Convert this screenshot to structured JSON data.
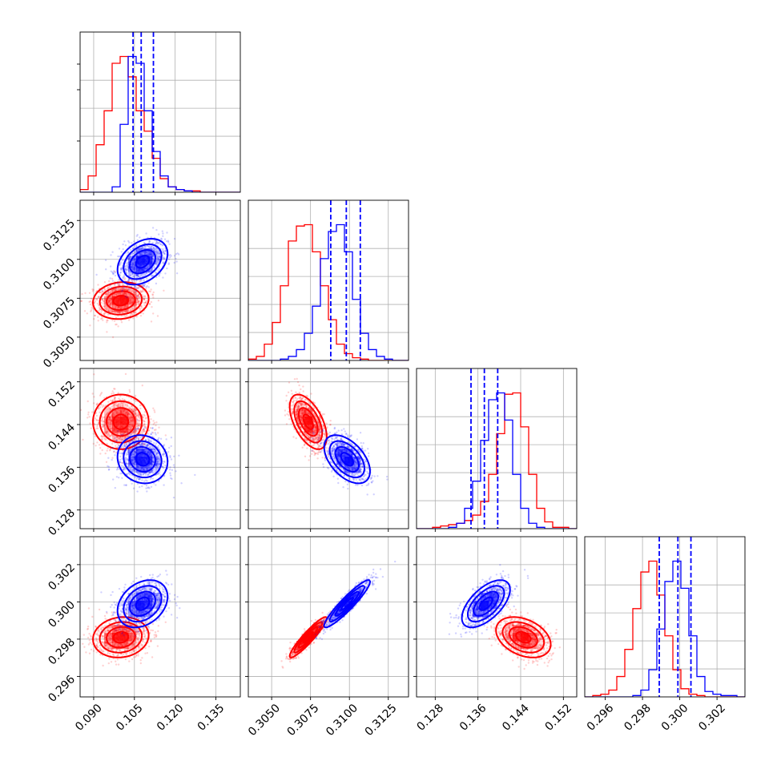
{
  "chart_data": {
    "type": "corner",
    "grid": true,
    "parameters": [
      {
        "range": [
          0.085,
          0.144
        ],
        "ticks": [
          0.09,
          0.105,
          0.12,
          0.135
        ],
        "tick_labels": [
          "0.090",
          "0.105",
          "0.120",
          "0.135"
        ]
      },
      {
        "range": [
          0.3035,
          0.3138
        ],
        "ticks": [
          0.305,
          0.3075,
          0.31,
          0.3125
        ],
        "tick_labels": [
          "0.3050",
          "0.3075",
          "0.3100",
          "0.3125"
        ]
      },
      {
        "range": [
          0.1245,
          0.1545
        ],
        "ticks": [
          0.128,
          0.136,
          0.144,
          0.152
        ],
        "tick_labels": [
          "0.128",
          "0.136",
          "0.144",
          "0.152"
        ]
      },
      {
        "range": [
          0.2949,
          0.3035
        ],
        "ticks": [
          0.296,
          0.298,
          0.3,
          0.302
        ],
        "tick_labels": [
          "0.296",
          "0.298",
          "0.300",
          "0.302"
        ]
      }
    ],
    "series": [
      {
        "color": "#ff0000",
        "mean": [
          0.1,
          0.30735,
          0.1445,
          0.2981
        ],
        "sd": [
          0.005,
          0.00058,
          0.0025,
          0.00053
        ],
        "correlations": [
          [
            0,
            1,
            0.1
          ],
          [
            0,
            2,
            0.0
          ],
          [
            0,
            3,
            0.1
          ],
          [
            1,
            2,
            -0.55
          ],
          [
            1,
            3,
            0.93
          ],
          [
            2,
            3,
            -0.35
          ]
        ],
        "histograms": [
          [
            2,
            12,
            35,
            60,
            95,
            100,
            85,
            60,
            45,
            25,
            10,
            4,
            2,
            1,
            1,
            0,
            0,
            0,
            0,
            0
          ],
          [
            1,
            3,
            12,
            28,
            55,
            88,
            99,
            100,
            80,
            55,
            30,
            12,
            5,
            2,
            1,
            0,
            0,
            0,
            0,
            0
          ],
          [
            0,
            0,
            1,
            2,
            3,
            4,
            6,
            10,
            20,
            40,
            70,
            99,
            100,
            75,
            40,
            15,
            5,
            1,
            1,
            0
          ],
          [
            0,
            1,
            2,
            5,
            15,
            35,
            65,
            92,
            100,
            75,
            45,
            20,
            6,
            2,
            1,
            0,
            0,
            0,
            0,
            0
          ]
        ],
        "contour_levels_sigma": [
          0.55,
          1.05,
          1.55,
          2.05
        ]
      },
      {
        "color": "#0000ff",
        "mean": [
          0.108,
          0.30985,
          0.1375,
          0.2999
        ],
        "sd": [
          0.0045,
          0.00072,
          0.0022,
          0.00062
        ],
        "correlations": [
          [
            0,
            1,
            0.35
          ],
          [
            0,
            2,
            -0.1
          ],
          [
            0,
            3,
            0.3
          ],
          [
            1,
            2,
            -0.5
          ],
          [
            1,
            3,
            0.93
          ],
          [
            2,
            3,
            0.6
          ]
        ],
        "histograms": [
          [
            0,
            0,
            0,
            0,
            4,
            50,
            100,
            95,
            60,
            30,
            12,
            4,
            2,
            1,
            0,
            0,
            0,
            0,
            0,
            0
          ],
          [
            0,
            0,
            0,
            0,
            1,
            3,
            8,
            20,
            40,
            75,
            95,
            100,
            80,
            45,
            20,
            8,
            3,
            1,
            0,
            0
          ],
          [
            0,
            0,
            0,
            0,
            1,
            4,
            15,
            35,
            65,
            95,
            100,
            80,
            40,
            15,
            4,
            1,
            0,
            0,
            0,
            0
          ],
          [
            0,
            0,
            0,
            0,
            0,
            0,
            1,
            5,
            20,
            50,
            85,
            100,
            80,
            45,
            15,
            4,
            2,
            1,
            1,
            0
          ]
        ],
        "quantiles": [
          [
            0.1045,
            0.1075,
            0.112
          ],
          [
            0.3088,
            0.3098,
            0.3107
          ],
          [
            0.1347,
            0.1372,
            0.1397
          ],
          [
            0.2989,
            0.2999,
            0.3006
          ]
        ],
        "contour_levels_sigma": [
          0.55,
          1.05,
          1.55,
          2.05
        ]
      }
    ]
  }
}
